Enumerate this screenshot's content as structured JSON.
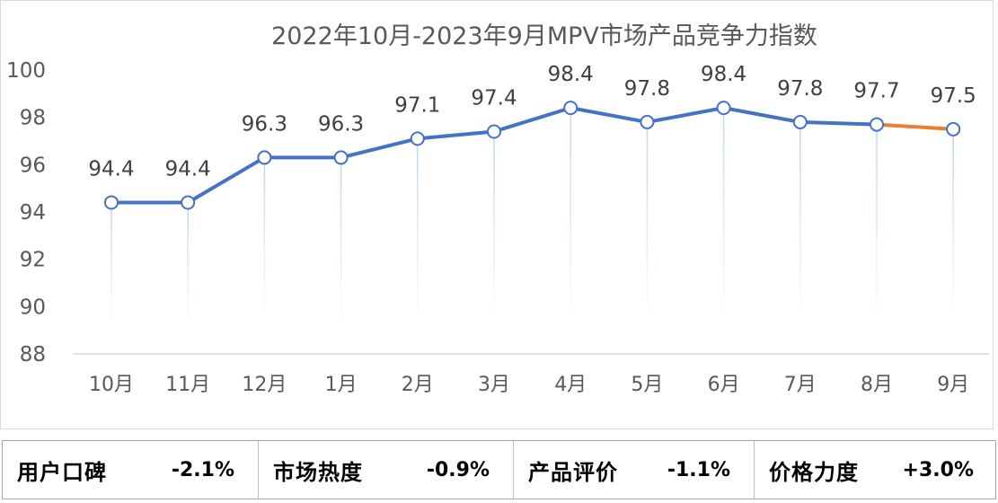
{
  "chart_data": {
    "type": "line",
    "title": "2022年10月-2023年9月MPV市场产品竞争力指数",
    "categories": [
      "10月",
      "11月",
      "12月",
      "1月",
      "2月",
      "3月",
      "4月",
      "5月",
      "6月",
      "7月",
      "8月",
      "9月"
    ],
    "series": [
      {
        "values": [
          94.4,
          94.4,
          96.3,
          96.3,
          97.1,
          97.4,
          98.4,
          97.8,
          98.4,
          97.8,
          97.7,
          97.5
        ]
      }
    ],
    "data_labels": [
      "94.4",
      "94.4",
      "96.3",
      "96.3",
      "97.1",
      "97.4",
      "98.4",
      "97.8",
      "98.4",
      "97.8",
      "97.7",
      "97.5"
    ],
    "yticks": [
      "100",
      "98",
      "96",
      "94",
      "92",
      "90",
      "88"
    ],
    "ylim": [
      88,
      100
    ],
    "line_color": "#4472c4",
    "last_segment_color": "#ed7d31",
    "grid": false,
    "drop_lines": true
  },
  "metrics": [
    {
      "label": "用户口碑",
      "value": "-2.1%"
    },
    {
      "label": "市场热度",
      "value": "-0.9%"
    },
    {
      "label": "产品评价",
      "value": "-1.1%"
    },
    {
      "label": "价格力度",
      "value": "+3.0%"
    }
  ]
}
